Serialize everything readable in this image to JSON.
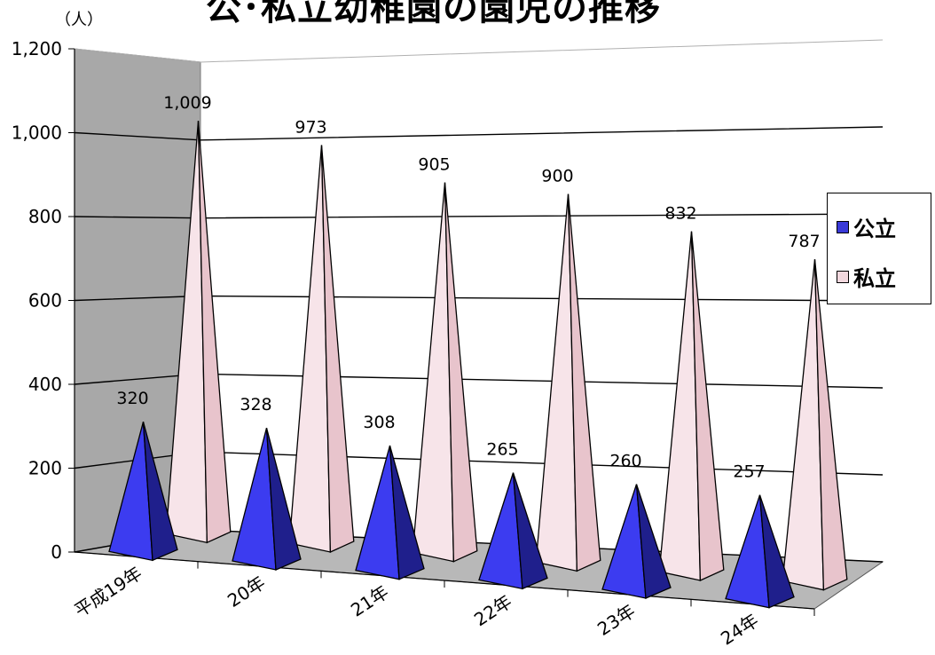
{
  "chart_data": {
    "type": "bar",
    "title": "公･私立幼稚園の園児の推移",
    "unit_label": "（人）",
    "categories": [
      "平成19年",
      "20年",
      "21年",
      "22年",
      "23年",
      "24年"
    ],
    "series": [
      {
        "name": "公立",
        "values": [
          320,
          328,
          308,
          265,
          260,
          257
        ],
        "color": "#3a3ad8"
      },
      {
        "name": "私立",
        "values": [
          1009,
          973,
          905,
          900,
          832,
          787
        ],
        "color": "#f2d8de"
      }
    ],
    "data_labels": {
      "公立": [
        "320",
        "328",
        "308",
        "265",
        "260",
        "257"
      ],
      "私立": [
        "1,009",
        "973",
        "905",
        "900",
        "832",
        "787"
      ]
    },
    "yticks": [
      "0",
      "200",
      "400",
      "600",
      "800",
      "1,000",
      "1,200"
    ],
    "ylim": [
      0,
      1200
    ],
    "grid": true,
    "legend_position": "right",
    "mark_shape": "3d-pyramid"
  }
}
